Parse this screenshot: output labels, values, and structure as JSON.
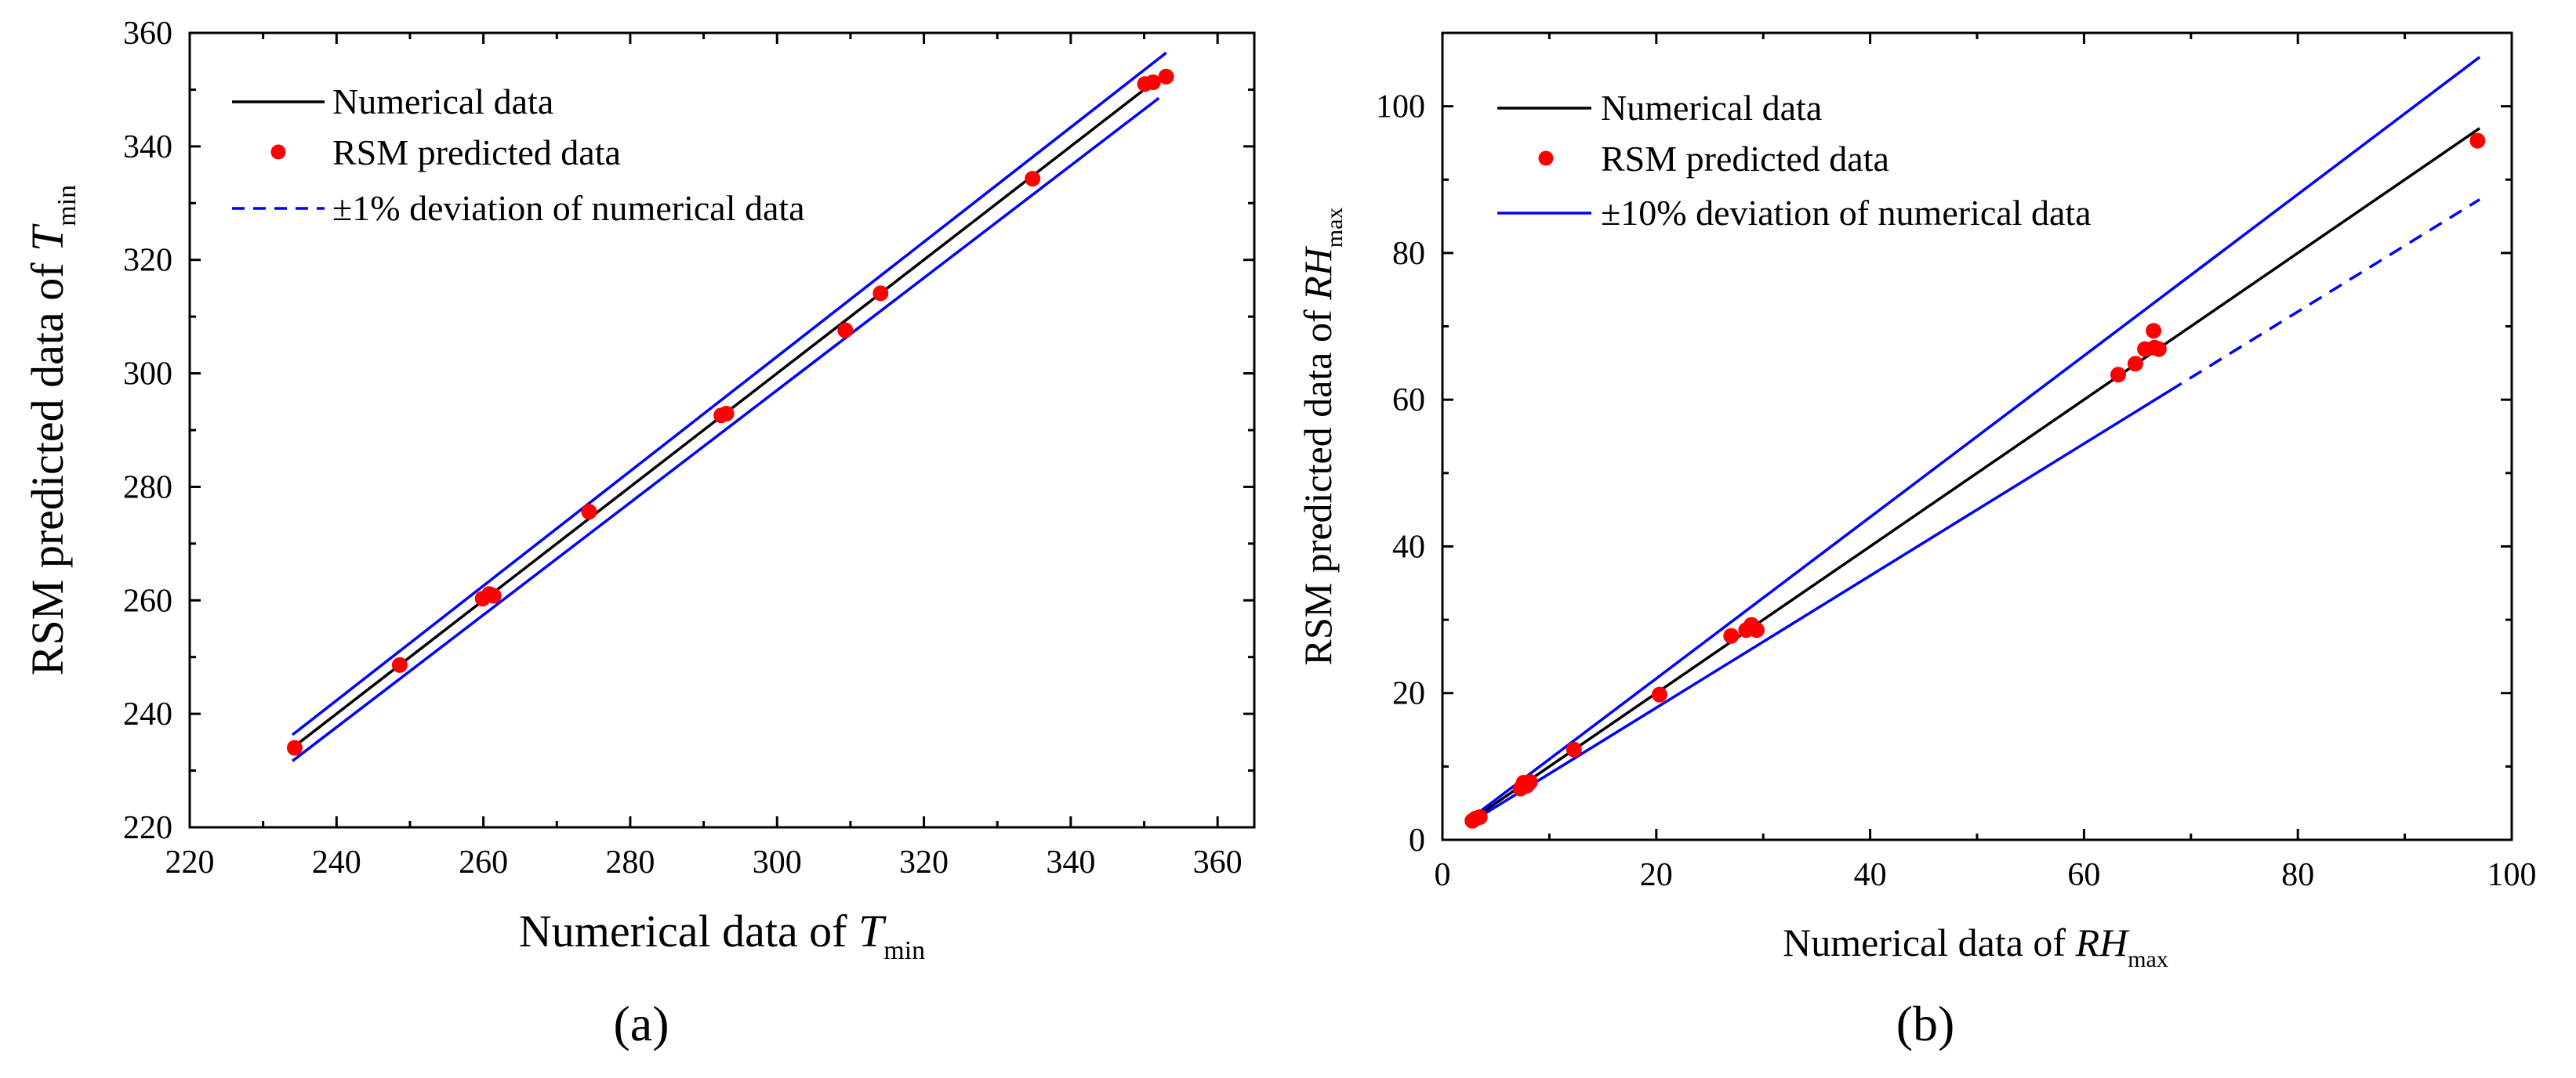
{
  "figure": {
    "panels": [
      {
        "id": "a",
        "caption": "(a)",
        "chart_index": 0
      },
      {
        "id": "b",
        "caption": "(b)",
        "chart_index": 1
      }
    ]
  },
  "chart_data": [
    {
      "type": "scatter",
      "title": "",
      "xlabel": {
        "base": "Numerical data of ",
        "italic": "T",
        "sub": "min"
      },
      "ylabel": {
        "base": "RSM predicted data  of ",
        "italic": "T",
        "sub": "min"
      },
      "xlim": [
        220,
        365
      ],
      "ylim": [
        220,
        360
      ],
      "xticks": [
        220,
        240,
        260,
        280,
        300,
        320,
        340,
        360
      ],
      "yticks": [
        220,
        240,
        260,
        280,
        300,
        320,
        340,
        360
      ],
      "grid": false,
      "legend_position": "top-left",
      "legend": [
        {
          "label": "Numerical data",
          "style": "line",
          "color": "#000000"
        },
        {
          "label": "RSM predicted data",
          "style": "marker",
          "color": "#ff0000"
        },
        {
          "label": "±1% deviation of numerical data",
          "style": "dashed",
          "color": "#0000ff"
        }
      ],
      "series": [
        {
          "name": "Numerical data",
          "kind": "line",
          "color": "#000000",
          "x": [
            234,
            352
          ],
          "y": [
            234,
            352
          ]
        },
        {
          "name": "+1% deviation",
          "kind": "line",
          "color": "#0000ff",
          "x": [
            234,
            353
          ],
          "y": [
            236.3,
            356.5
          ]
        },
        {
          "name": "-1% deviation",
          "kind": "line",
          "color": "#0000ff",
          "x": [
            234,
            352
          ],
          "y": [
            231.7,
            348.5
          ]
        },
        {
          "name": "RSM predicted data",
          "kind": "scatter",
          "color": "#ff0000",
          "x": [
            234.3,
            248.6,
            259.9,
            260.8,
            261.4,
            274.4,
            292.4,
            293.1,
            309.3,
            314.1,
            334.8,
            350.1,
            351.2,
            353.0
          ],
          "y": [
            234.0,
            248.6,
            260.3,
            261.1,
            260.8,
            275.6,
            292.6,
            292.9,
            307.6,
            314.1,
            334.3,
            351.0,
            351.3,
            352.3
          ]
        }
      ]
    },
    {
      "type": "scatter",
      "title": "",
      "xlabel": {
        "base": "Numerical data of ",
        "italic": "RH",
        "sub": "max"
      },
      "ylabel": {
        "base": "RSM predicted data  of ",
        "italic": "RH",
        "sub": "max"
      },
      "xlim": [
        0,
        100
      ],
      "ylim": [
        0,
        110
      ],
      "xticks": [
        0,
        20,
        40,
        60,
        80,
        100
      ],
      "yticks": [
        0,
        20,
        40,
        60,
        80,
        100
      ],
      "grid": false,
      "legend_position": "top-left",
      "legend": [
        {
          "label": "Numerical data",
          "style": "line",
          "color": "#000000"
        },
        {
          "label": "RSM predicted data",
          "style": "marker",
          "color": "#ff0000"
        },
        {
          "label": "±10% deviation of numerical data",
          "style": "line",
          "color": "#0000ff"
        }
      ],
      "series": [
        {
          "name": "Numerical data",
          "kind": "line",
          "color": "#000000",
          "x": [
            2.5,
            97
          ],
          "y": [
            2.5,
            97
          ]
        },
        {
          "name": "+10% deviation",
          "kind": "line",
          "color": "#0000ff",
          "x": [
            2.5,
            97
          ],
          "y": [
            2.75,
            106.7
          ]
        },
        {
          "name": "-10% deviation (solid)",
          "kind": "line",
          "color": "#0000ff",
          "x": [
            2.5,
            68
          ],
          "y": [
            2.25,
            61.2
          ]
        },
        {
          "name": "-10% deviation (dashed)",
          "kind": "dashed",
          "color": "#0000ff",
          "x": [
            68,
            97
          ],
          "y": [
            61.2,
            87.3
          ]
        },
        {
          "name": "RSM predicted data",
          "kind": "scatter",
          "color": "#ff0000",
          "x": [
            2.8,
            3.1,
            3.5,
            7.3,
            7.6,
            7.9,
            8.2,
            12.3,
            20.3,
            27.0,
            28.4,
            28.9,
            29.4,
            63.2,
            64.8,
            65.7,
            66.6,
            67.0,
            66.5,
            96.8
          ],
          "y": [
            2.6,
            2.9,
            3.1,
            7.0,
            7.8,
            7.4,
            7.9,
            12.3,
            19.8,
            27.8,
            28.6,
            29.3,
            28.6,
            63.4,
            64.9,
            66.9,
            67.1,
            66.9,
            69.4,
            95.3
          ]
        }
      ]
    }
  ]
}
